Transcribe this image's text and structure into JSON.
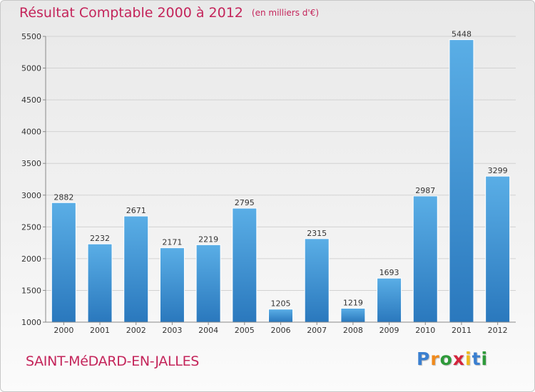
{
  "title": "Résultat Comptable 2000 à 2012",
  "unit_note": "(en milliers d'€)",
  "place": "SAINT-MéDARD-EN-JALLES",
  "logo": {
    "letters": [
      "P",
      "r",
      "o",
      "x",
      "i",
      "t",
      "i"
    ],
    "colors": [
      "#3a7fd0",
      "#f08a1c",
      "#2e9a3a",
      "#d4243c",
      "#f0b81c",
      "#3a7fd0",
      "#2e9a3a"
    ]
  },
  "colors": {
    "bar": "#3d8fd6",
    "accent": "#c4245a"
  },
  "chart_data": {
    "type": "bar",
    "categories": [
      "2000",
      "2001",
      "2002",
      "2003",
      "2004",
      "2005",
      "2006",
      "2007",
      "2008",
      "2009",
      "2010",
      "2011",
      "2012"
    ],
    "values": [
      2882,
      2232,
      2671,
      2171,
      2219,
      2795,
      1205,
      2315,
      1219,
      1693,
      2987,
      5448,
      3299
    ],
    "ylim": [
      1000,
      5500
    ],
    "yticks": [
      1000,
      1500,
      2000,
      2500,
      3000,
      3500,
      4000,
      4500,
      5000,
      5500
    ],
    "grid": true,
    "data_labels": true
  }
}
